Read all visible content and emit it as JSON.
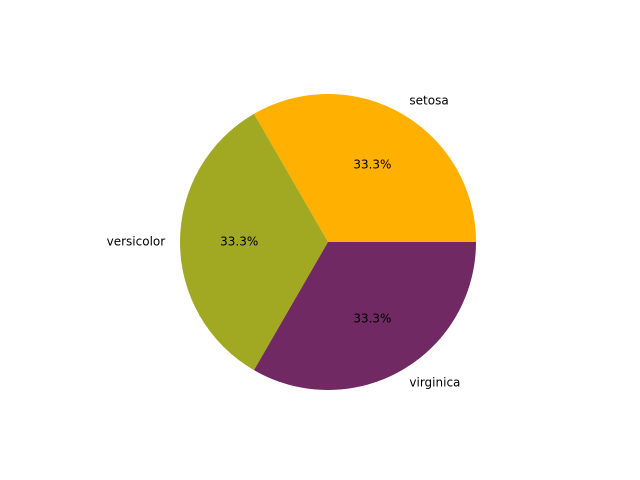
{
  "chart_data": {
    "type": "pie",
    "title": "",
    "labels": [
      "setosa",
      "versicolor",
      "virginica"
    ],
    "values": [
      50,
      50,
      50
    ],
    "percent_labels": [
      "33.3%",
      "33.3%",
      "33.3%"
    ],
    "colors": [
      "#ffb000",
      "#a0a921",
      "#702963"
    ],
    "start_angle_deg": 0,
    "direction": "counterclockwise",
    "legend": "none"
  }
}
